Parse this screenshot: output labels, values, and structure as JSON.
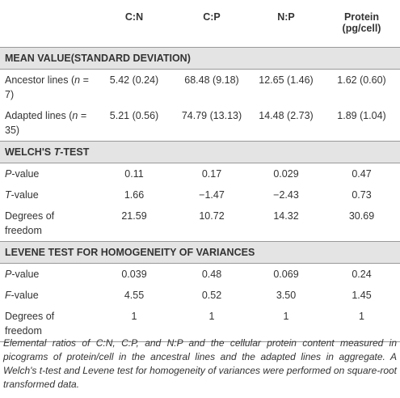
{
  "table": {
    "header": [
      "",
      "C:N",
      "C:P",
      "N:P",
      "Protein (pg/cell)"
    ],
    "sections": [
      {
        "title": [
          "MEAN VALUE(STANDARD DEVIATION)"
        ],
        "rows": [
          {
            "label": [
              "Ancestor lines (",
              {
                "text": "n",
                "italic": true
              },
              " = 7)"
            ],
            "values": [
              "5.42 (0.24)",
              "68.48 (9.18)",
              "12.65 (1.46)",
              "1.62 (0.60)"
            ]
          },
          {
            "label": [
              "Adapted lines (",
              {
                "text": "n",
                "italic": true
              },
              " = 35)"
            ],
            "values": [
              "5.21 (0.56)",
              "74.79 (13.13)",
              "14.48 (2.73)",
              "1.89 (1.04)"
            ]
          }
        ]
      },
      {
        "title": [
          "WELCH'S ",
          {
            "text": "T",
            "italic": true
          },
          "-TEST"
        ],
        "rows": [
          {
            "label": [
              {
                "text": "P",
                "italic": true
              },
              "-value"
            ],
            "values": [
              "0.11",
              "0.17",
              "0.029",
              "0.47"
            ]
          },
          {
            "label": [
              {
                "text": "T",
                "italic": true
              },
              "-value"
            ],
            "values": [
              "1.66",
              "−1.47",
              "−2.43",
              "0.73"
            ]
          },
          {
            "label": [
              "Degrees of freedom"
            ],
            "values": [
              "21.59",
              "10.72",
              "14.32",
              "30.69"
            ]
          }
        ]
      },
      {
        "title": [
          "LEVENE TEST FOR HOMOGENEITY OF VARIANCES"
        ],
        "rows": [
          {
            "label": [
              {
                "text": "P",
                "italic": true
              },
              "-value"
            ],
            "values": [
              "0.039",
              "0.48",
              "0.069",
              "0.24"
            ]
          },
          {
            "label": [
              {
                "text": "F",
                "italic": true
              },
              "-value"
            ],
            "values": [
              "4.55",
              "0.52",
              "3.50",
              "1.45"
            ]
          },
          {
            "label": [
              "Degrees of freedom"
            ],
            "values": [
              "1",
              "1",
              "1",
              "1"
            ]
          }
        ]
      }
    ]
  },
  "caption": "Elemental ratios of C:N, C:P, and N:P and the cellular protein content measured in picograms of protein/cell in the ancestral lines and the adapted lines in aggregate. A Welch's t-test and Levene test for homogeneity of variances were performed on square-root transformed data."
}
